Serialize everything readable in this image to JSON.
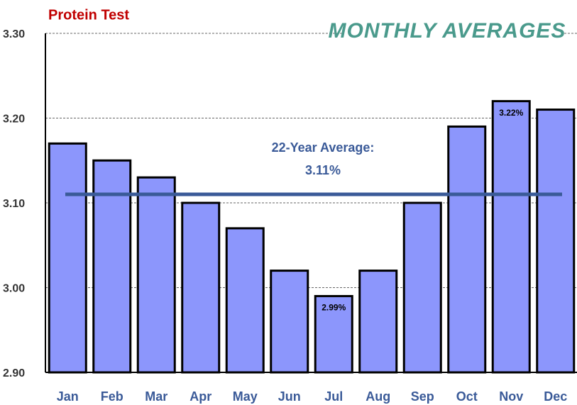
{
  "chart_data": {
    "type": "bar",
    "title": "Protein Test",
    "subtitle": "MONTHLY AVERAGES",
    "categories": [
      "Jan",
      "Feb",
      "Mar",
      "Apr",
      "May",
      "Jun",
      "Jul",
      "Aug",
      "Sep",
      "Oct",
      "Nov",
      "Dec"
    ],
    "values": [
      3.17,
      3.15,
      3.13,
      3.1,
      3.07,
      3.02,
      2.99,
      3.02,
      3.1,
      3.19,
      3.22,
      3.21
    ],
    "value_labels": [
      null,
      null,
      null,
      null,
      null,
      null,
      "2.99%",
      null,
      null,
      null,
      "3.22%",
      null
    ],
    "color": "#8c96fc",
    "ylim": [
      2.9,
      3.3
    ],
    "yticks": [
      {
        "value": 2.9,
        "label": "2.90"
      },
      {
        "value": 3.0,
        "label": "3.00"
      },
      {
        "value": 3.1,
        "label": "3.10"
      },
      {
        "value": 3.2,
        "label": "3.20"
      },
      {
        "value": 3.3,
        "label": "3.30"
      }
    ],
    "grid": true,
    "average": {
      "label": "22-Year Average:",
      "value": 3.11,
      "value_label": "3.11%",
      "color": "#3a5a98"
    }
  }
}
